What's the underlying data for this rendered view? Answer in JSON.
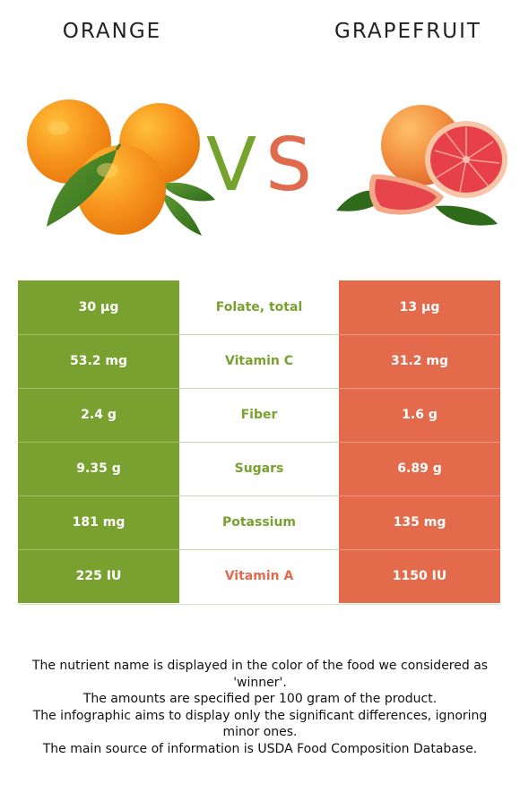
{
  "header": {
    "left_food": "ORANGE",
    "right_food": "GRAPEFRUIT",
    "vs_v": "V",
    "vs_s": "S"
  },
  "colors": {
    "left_winner": "#79a12f",
    "right_winner": "#e36b4c"
  },
  "rows": [
    {
      "left": "30 µg",
      "nutrient": "Folate, total",
      "right": "13 µg",
      "winner": "left"
    },
    {
      "left": "53.2 mg",
      "nutrient": "Vitamin C",
      "right": "31.2 mg",
      "winner": "left"
    },
    {
      "left": "2.4 g",
      "nutrient": "Fiber",
      "right": "1.6 g",
      "winner": "left"
    },
    {
      "left": "9.35 g",
      "nutrient": "Sugars",
      "right": "6.89 g",
      "winner": "left"
    },
    {
      "left": "181 mg",
      "nutrient": "Potassium",
      "right": "135 mg",
      "winner": "left"
    },
    {
      "left": "225 IU",
      "nutrient": "Vitamin A",
      "right": "1150 IU",
      "winner": "right"
    }
  ],
  "footnotes": [
    "The nutrient name is displayed in the color of the food we considered as 'winner'.",
    "The amounts are specified per 100 gram of the product.",
    "The infographic aims to display only the significant differences, ignoring minor ones.",
    "The main source of information is USDA Food Composition Database."
  ]
}
